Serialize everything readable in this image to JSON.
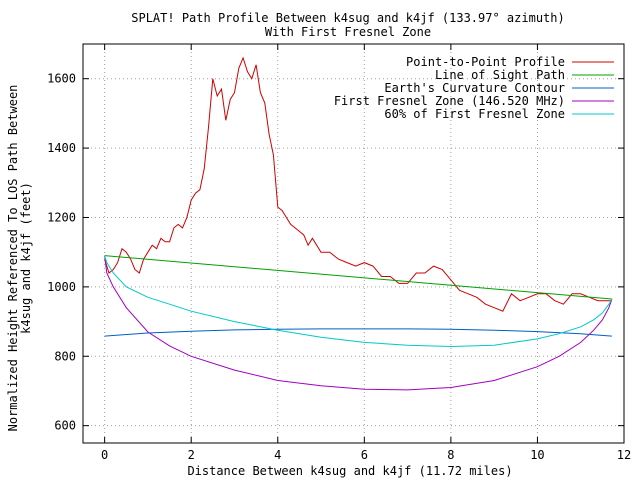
{
  "chart_data": {
    "type": "line",
    "title": "SPLAT! Path Profile Between k4sug and k4jf (133.97° azimuth)",
    "subtitle": "With First Fresnel Zone",
    "xlabel": "Distance Between k4sug and k4jf (11.72 miles)",
    "ylabel_lines": [
      "Normalized Height Referenced To LOS Path Between",
      "k4sug and k4jf (feet)"
    ],
    "xlim": [
      -0.5,
      12
    ],
    "ylim": [
      550,
      1700
    ],
    "x_ticks": [
      0,
      2,
      4,
      6,
      8,
      10,
      12
    ],
    "y_ticks": [
      600,
      800,
      1000,
      1200,
      1400,
      1600
    ],
    "grid": true,
    "legend_position": "top-right",
    "series": [
      {
        "name": "Point-to-Point Profile",
        "color": "#d00000",
        "x": [
          0,
          0.1,
          0.2,
          0.3,
          0.4,
          0.5,
          0.6,
          0.7,
          0.8,
          0.9,
          1.0,
          1.1,
          1.2,
          1.3,
          1.4,
          1.5,
          1.6,
          1.7,
          1.8,
          1.9,
          2.0,
          2.1,
          2.2,
          2.3,
          2.4,
          2.5,
          2.6,
          2.7,
          2.8,
          2.9,
          3.0,
          3.1,
          3.2,
          3.3,
          3.4,
          3.5,
          3.6,
          3.7,
          3.8,
          3.9,
          4.0,
          4.1,
          4.2,
          4.3,
          4.4,
          4.5,
          4.6,
          4.7,
          4.8,
          4.9,
          5.0,
          5.2,
          5.4,
          5.6,
          5.8,
          6.0,
          6.2,
          6.4,
          6.6,
          6.8,
          7.0,
          7.2,
          7.4,
          7.6,
          7.8,
          8.0,
          8.2,
          8.4,
          8.6,
          8.8,
          9.0,
          9.2,
          9.4,
          9.6,
          9.8,
          10.0,
          10.2,
          10.4,
          10.6,
          10.8,
          11.0,
          11.2,
          11.4,
          11.6,
          11.72
        ],
        "y": [
          1080,
          1040,
          1050,
          1070,
          1110,
          1100,
          1080,
          1050,
          1040,
          1080,
          1100,
          1120,
          1110,
          1140,
          1130,
          1130,
          1170,
          1180,
          1170,
          1200,
          1250,
          1270,
          1280,
          1340,
          1460,
          1600,
          1550,
          1570,
          1480,
          1540,
          1560,
          1630,
          1660,
          1620,
          1600,
          1640,
          1560,
          1530,
          1440,
          1380,
          1230,
          1220,
          1200,
          1180,
          1170,
          1160,
          1150,
          1120,
          1140,
          1120,
          1100,
          1100,
          1080,
          1070,
          1060,
          1070,
          1060,
          1030,
          1030,
          1010,
          1010,
          1040,
          1040,
          1060,
          1050,
          1020,
          990,
          980,
          970,
          950,
          940,
          930,
          980,
          960,
          970,
          980,
          980,
          960,
          950,
          980,
          980,
          970,
          960,
          960,
          960
        ]
      },
      {
        "name": "Line of Sight Path",
        "color": "#00a000",
        "x": [
          0,
          11.72
        ],
        "y": [
          1090,
          965
        ]
      },
      {
        "name": "Earth's Curvature Contour",
        "color": "#0060c0",
        "x": [
          0,
          1,
          2,
          3,
          4,
          5,
          6,
          7,
          8,
          9,
          10,
          11,
          11.72
        ],
        "y": [
          858,
          867,
          872,
          876,
          878,
          879,
          879,
          879,
          878,
          875,
          871,
          865,
          858
        ]
      },
      {
        "name": "First Fresnel Zone (146.520 MHz)",
        "color": "#a000c0",
        "x": [
          0,
          0.05,
          0.2,
          0.5,
          1,
          1.5,
          2,
          3,
          4,
          5,
          6,
          7,
          8,
          9,
          10,
          10.5,
          11,
          11.3,
          11.5,
          11.65,
          11.72
        ],
        "y": [
          1090,
          1040,
          1000,
          940,
          870,
          830,
          800,
          760,
          730,
          715,
          705,
          703,
          710,
          730,
          770,
          800,
          840,
          875,
          905,
          940,
          965
        ]
      },
      {
        "name": "60% of First Fresnel Zone",
        "color": "#00c8c8",
        "x": [
          0,
          0.05,
          0.2,
          0.5,
          1,
          1.5,
          2,
          3,
          4,
          5,
          6,
          7,
          8,
          9,
          10,
          10.5,
          11,
          11.3,
          11.5,
          11.65,
          11.72
        ],
        "y": [
          1090,
          1070,
          1040,
          1000,
          970,
          950,
          930,
          900,
          875,
          855,
          840,
          832,
          828,
          832,
          850,
          865,
          885,
          905,
          925,
          950,
          965
        ]
      }
    ]
  }
}
